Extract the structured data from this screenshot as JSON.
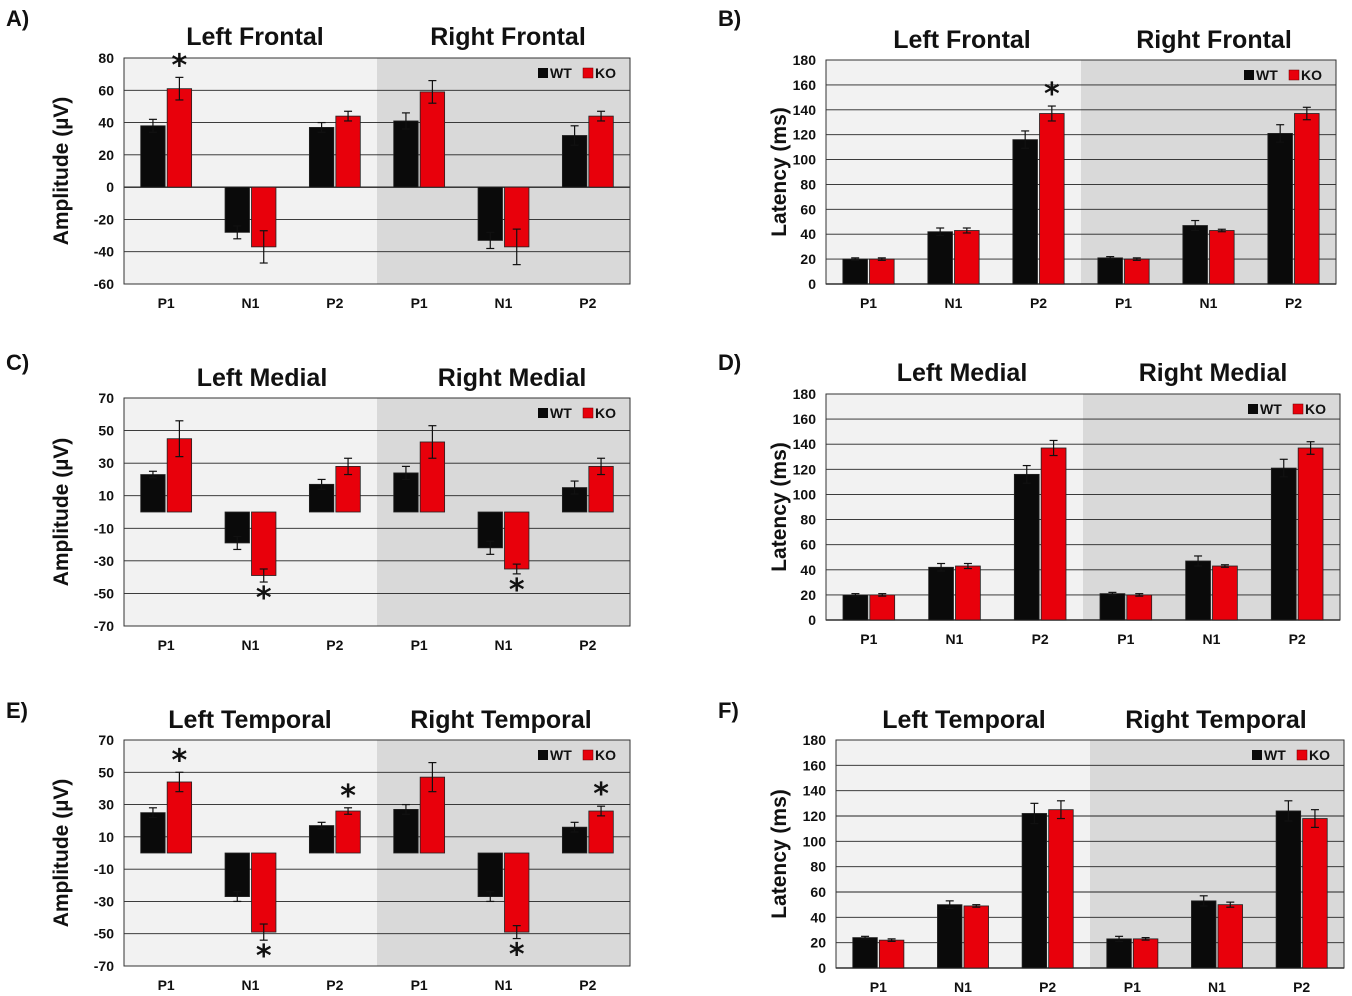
{
  "legend": {
    "wt": "WT",
    "ko": "KO"
  },
  "colors": {
    "wt": "#0a0a0a",
    "ko": "#e8000b",
    "panel_left": "#f2f2f2",
    "panel_right": "#d9d9d9",
    "grid": "#222222"
  },
  "significance_mark": "*",
  "chart_data": [
    {
      "panel": "A)",
      "type": "bar",
      "groups": [
        "Left Frontal",
        "Right Frontal"
      ],
      "categories": [
        "P1",
        "N1",
        "P2",
        "P1",
        "N1",
        "P2"
      ],
      "ylabel": "Amplitude (µV)",
      "ylim": [
        -60,
        80
      ],
      "yticks": [
        80,
        60,
        40,
        20,
        0,
        -20,
        -40,
        -60
      ],
      "grid": true,
      "legend": "top-right",
      "series": [
        {
          "name": "WT",
          "values": [
            38,
            -28,
            37,
            41,
            -33,
            32
          ],
          "errors": [
            4,
            4,
            3,
            5,
            5,
            6
          ]
        },
        {
          "name": "KO",
          "values": [
            61,
            -37,
            44,
            59,
            -37,
            44
          ],
          "errors": [
            7,
            10,
            3,
            7,
            11,
            3
          ]
        }
      ],
      "significance": [
        {
          "category": 0,
          "series": "KO"
        }
      ]
    },
    {
      "panel": "B)",
      "type": "bar",
      "groups": [
        "Left Frontal",
        "Right Frontal"
      ],
      "categories": [
        "P1",
        "N1",
        "P2",
        "P1",
        "N1",
        "P2"
      ],
      "ylabel": "Latency (ms)",
      "ylim": [
        0,
        180
      ],
      "yticks": [
        180,
        160,
        140,
        120,
        100,
        80,
        60,
        40,
        20,
        0
      ],
      "grid": true,
      "legend": "top-right",
      "series": [
        {
          "name": "WT",
          "values": [
            20,
            42,
            116,
            21,
            47,
            121
          ],
          "errors": [
            1,
            3,
            7,
            1,
            4,
            7
          ]
        },
        {
          "name": "KO",
          "values": [
            20,
            43,
            137,
            20,
            43,
            137
          ],
          "errors": [
            1,
            2,
            6,
            1,
            1,
            5
          ]
        }
      ],
      "significance": [
        {
          "category": 2,
          "series": "KO"
        }
      ]
    },
    {
      "panel": "C)",
      "type": "bar",
      "groups": [
        "Left Medial",
        "Right Medial"
      ],
      "categories": [
        "P1",
        "N1",
        "P2",
        "P1",
        "N1",
        "P2"
      ],
      "ylabel": "Amplitude (µV)",
      "ylim": [
        -70,
        70
      ],
      "yticks": [
        70,
        50,
        30,
        10,
        -10,
        -30,
        -50,
        -70
      ],
      "grid": true,
      "legend": "top-right",
      "series": [
        {
          "name": "WT",
          "values": [
            23,
            -19,
            17,
            24,
            -22,
            15
          ],
          "errors": [
            2,
            4,
            3,
            4,
            4,
            4
          ]
        },
        {
          "name": "KO",
          "values": [
            45,
            -39,
            28,
            43,
            -35,
            28
          ],
          "errors": [
            11,
            4,
            5,
            10,
            3,
            5
          ]
        }
      ],
      "significance": [
        {
          "category": 1,
          "series": "KO",
          "below": true
        },
        {
          "category": 4,
          "series": "KO",
          "below": true
        }
      ]
    },
    {
      "panel": "D)",
      "type": "bar",
      "groups": [
        "Left Medial",
        "Right Medial"
      ],
      "categories": [
        "P1",
        "N1",
        "P2",
        "P1",
        "N1",
        "P2"
      ],
      "ylabel": "Latency (ms)",
      "ylim": [
        0,
        180
      ],
      "yticks": [
        180,
        160,
        140,
        120,
        100,
        80,
        60,
        40,
        20,
        0
      ],
      "grid": true,
      "legend": "top-right",
      "series": [
        {
          "name": "WT",
          "values": [
            20,
            42,
            116,
            21,
            47,
            121
          ],
          "errors": [
            1,
            3,
            7,
            1,
            4,
            7
          ]
        },
        {
          "name": "KO",
          "values": [
            20,
            43,
            137,
            20,
            43,
            137
          ],
          "errors": [
            1,
            2,
            6,
            1,
            1,
            5
          ]
        }
      ],
      "significance": []
    },
    {
      "panel": "E)",
      "type": "bar",
      "groups": [
        "Left Temporal",
        "Right Temporal"
      ],
      "categories": [
        "P1",
        "N1",
        "P2",
        "P1",
        "N1",
        "P2"
      ],
      "ylabel": "Amplitude (µV)",
      "ylim": [
        -70,
        70
      ],
      "yticks": [
        70,
        50,
        30,
        10,
        -10,
        -30,
        -50,
        -70
      ],
      "grid": true,
      "legend": "top-right",
      "series": [
        {
          "name": "WT",
          "values": [
            25,
            -27,
            17,
            27,
            -27,
            16
          ],
          "errors": [
            3,
            3,
            2,
            3,
            3,
            3
          ]
        },
        {
          "name": "KO",
          "values": [
            44,
            -49,
            26,
            47,
            -49,
            26
          ],
          "errors": [
            6,
            5,
            2,
            9,
            4,
            3
          ]
        }
      ],
      "significance": [
        {
          "category": 0,
          "series": "KO"
        },
        {
          "category": 1,
          "series": "KO",
          "below": true
        },
        {
          "category": 2,
          "series": "KO"
        },
        {
          "category": 4,
          "series": "KO",
          "below": true
        },
        {
          "category": 5,
          "series": "KO"
        }
      ]
    },
    {
      "panel": "F)",
      "type": "bar",
      "groups": [
        "Left Temporal",
        "Right Temporal"
      ],
      "categories": [
        "P1",
        "N1",
        "P2",
        "P1",
        "N1",
        "P2"
      ],
      "ylabel": "Latency (ms)",
      "ylim": [
        0,
        180
      ],
      "yticks": [
        180,
        160,
        140,
        120,
        100,
        80,
        60,
        40,
        20,
        0
      ],
      "grid": true,
      "legend": "top-right",
      "series": [
        {
          "name": "WT",
          "values": [
            24,
            50,
            122,
            23,
            53,
            124
          ],
          "errors": [
            1,
            3,
            8,
            2,
            4,
            8
          ]
        },
        {
          "name": "KO",
          "values": [
            22,
            49,
            125,
            23,
            50,
            118
          ],
          "errors": [
            1,
            1,
            7,
            1,
            2,
            7
          ]
        }
      ],
      "significance": []
    }
  ]
}
